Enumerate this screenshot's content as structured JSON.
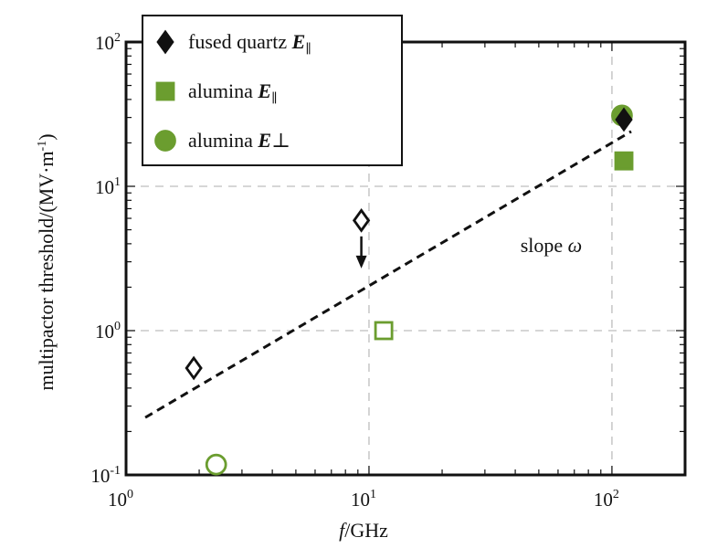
{
  "chart_data": {
    "type": "scatter",
    "scale": {
      "x": "log",
      "y": "log"
    },
    "xlim": [
      1,
      200
    ],
    "ylim": [
      0.1,
      100
    ],
    "xlabel": {
      "italic": "f",
      "rest": "/GHz"
    },
    "ylabel": {
      "main": "multipactor threshold/(MV·m",
      "sup": "-1",
      "tail": ")"
    },
    "x_ticks": [
      {
        "value": 1,
        "base": "10",
        "exp": "0"
      },
      {
        "value": 10,
        "base": "10",
        "exp": "1"
      },
      {
        "value": 100,
        "base": "10",
        "exp": "2"
      }
    ],
    "y_ticks": [
      {
        "value": 0.1,
        "base": "10",
        "exp": "-1"
      },
      {
        "value": 1,
        "base": "10",
        "exp": "0"
      },
      {
        "value": 10,
        "base": "10",
        "exp": "1"
      },
      {
        "value": 100,
        "base": "10",
        "exp": "2"
      }
    ],
    "grid": "dashed, major decades",
    "legend_position": "top-left",
    "colors": {
      "quartz": "#111111",
      "alumina": "#6b9d2f",
      "fit": "#111111"
    },
    "series": [
      {
        "name": "fused quartz E∥",
        "legend_text": "fused quartz",
        "legend_E": "E",
        "legend_sub": "∥",
        "marker": "diamond",
        "points": [
          {
            "x": 1.9,
            "y": 0.55,
            "filled": false
          },
          {
            "x": 9.3,
            "y": 5.8,
            "filled": false
          },
          {
            "x": 112,
            "y": 29,
            "filled": true
          }
        ]
      },
      {
        "name": "alumina E∥",
        "legend_text": "alumina",
        "legend_E": "E",
        "legend_sub": "∥",
        "marker": "square",
        "points": [
          {
            "x": 11.5,
            "y": 1.0,
            "filled": false
          },
          {
            "x": 112,
            "y": 15,
            "filled": true
          }
        ]
      },
      {
        "name": "alumina E⊥",
        "legend_text": "alumina",
        "legend_E": "E",
        "legend_sub": "⊥",
        "marker": "circle",
        "points": [
          {
            "x": 2.35,
            "y": 0.118,
            "filled": false
          },
          {
            "x": 110,
            "y": 31,
            "filled": true
          }
        ]
      }
    ],
    "fit_line": {
      "style": "dashed",
      "points": [
        {
          "x": 1.2,
          "y": 0.25
        },
        {
          "x": 120,
          "y": 24
        }
      ]
    },
    "arrow": {
      "x": 9.3,
      "y_from": 4.5,
      "y_to": 2.7
    },
    "annotation": {
      "text": "slope ",
      "symbol": "ω",
      "x": 42,
      "y": 3.5
    }
  }
}
